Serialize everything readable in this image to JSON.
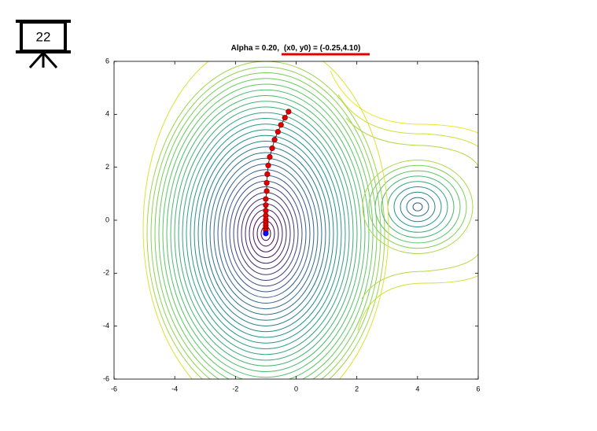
{
  "slide_number": "22",
  "chart_data": {
    "type": "descent",
    "title": [
      "Alpha = 0.20,",
      "(x0, y0) = (-0.25,4.10)"
    ],
    "xlim": [
      -6,
      6
    ],
    "ylim": [
      -6,
      6
    ],
    "xticks": [
      -6,
      -4,
      -2,
      0,
      2,
      4,
      6
    ],
    "yticks": [
      -6,
      -4,
      -2,
      0,
      2,
      4,
      6
    ],
    "series": [
      {
        "color": "#e00000",
        "end_color": "#1010ff",
        "x": [
          -0.25,
          -0.37,
          -0.5,
          -0.6,
          -0.71,
          -0.79,
          -0.87,
          -0.92,
          -0.95,
          -0.97,
          -0.97,
          -1.0,
          -1.0,
          -1.0,
          -1.0,
          -1.0,
          -1.0,
          -1.0,
          -1.0,
          -1.0,
          -1.0
        ],
        "y": [
          4.1,
          3.87,
          3.6,
          3.34,
          3.04,
          2.72,
          2.39,
          2.07,
          1.74,
          1.41,
          1.1,
          0.8,
          0.57,
          0.36,
          0.18,
          0.03,
          -0.09,
          -0.2,
          -0.3,
          -0.39,
          -0.5
        ]
      }
    ]
  }
}
